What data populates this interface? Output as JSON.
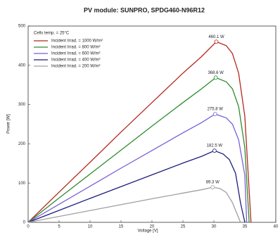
{
  "chart_data": {
    "type": "line",
    "title": "PV module:  SUNPRO,  SPDG460-N96R12",
    "x_label": "Voltage [V]",
    "y_label": "Power [W]",
    "legend_title": "Cells temp. = 25°C",
    "legend_position": "upper left",
    "xlim": [
      0,
      40
    ],
    "xticks": [
      0,
      5,
      10,
      15,
      20,
      25,
      30,
      35,
      40
    ],
    "ylim": [
      0,
      500
    ],
    "yticks": [
      0,
      100,
      200,
      300,
      400,
      500
    ],
    "grid": false,
    "series": [
      {
        "name": "Incident Irrad. = 1000 W/m²",
        "color": "#b4281e",
        "x": [
          0,
          5,
          10,
          15,
          20,
          25,
          28,
          30.4,
          32,
          33,
          34,
          35,
          36
        ],
        "values": [
          0,
          77,
          153,
          230,
          305,
          380,
          422,
          460.1,
          450,
          430,
          380,
          270,
          0
        ],
        "mpp": {
          "x": 30.4,
          "value": 460.1,
          "label": "460.1 W"
        }
      },
      {
        "name": "Incident Irrad. = 800 W/m²",
        "color": "#2e8a2e",
        "x": [
          0,
          5,
          10,
          15,
          20,
          25,
          28,
          30.3,
          32,
          33,
          34,
          35,
          35.7
        ],
        "values": [
          0,
          62,
          123,
          184,
          245,
          305,
          340,
          368.6,
          358,
          340,
          295,
          190,
          0
        ],
        "mpp": {
          "x": 30.3,
          "value": 368.6,
          "label": "368.6 W"
        }
      },
      {
        "name": "Incident Irrad. = 600 W/m²",
        "color": "#7a5ed6",
        "x": [
          0,
          5,
          10,
          15,
          20,
          25,
          28,
          30.2,
          32,
          33,
          34,
          35,
          35.3
        ],
        "values": [
          0,
          46,
          92,
          138,
          183,
          228,
          254,
          275.8,
          266,
          250,
          210,
          120,
          0
        ],
        "mpp": {
          "x": 30.2,
          "value": 275.8,
          "label": "275.8 W"
        }
      },
      {
        "name": "Incident Irrad. = 400 W/m²",
        "color": "#1c1c80",
        "x": [
          0,
          5,
          10,
          15,
          20,
          25,
          28,
          30.1,
          31.5,
          32.5,
          33.5,
          34.3,
          35
        ],
        "values": [
          0,
          30.5,
          61,
          91,
          121,
          151,
          168,
          182.5,
          174,
          160,
          125,
          50,
          0
        ],
        "mpp": {
          "x": 30.1,
          "value": 182.5,
          "label": "182.5 W"
        }
      },
      {
        "name": "Incident Irrad. = 200 W/m²",
        "color": "#a0a0a0",
        "x": [
          0,
          5,
          10,
          15,
          20,
          25,
          28,
          29.8,
          31,
          32,
          33,
          34.3
        ],
        "values": [
          0,
          15,
          30,
          45,
          60,
          74.5,
          83,
          89.3,
          86,
          76,
          50,
          0
        ],
        "mpp": {
          "x": 29.8,
          "value": 89.3,
          "label": "89.3 W"
        }
      }
    ]
  }
}
